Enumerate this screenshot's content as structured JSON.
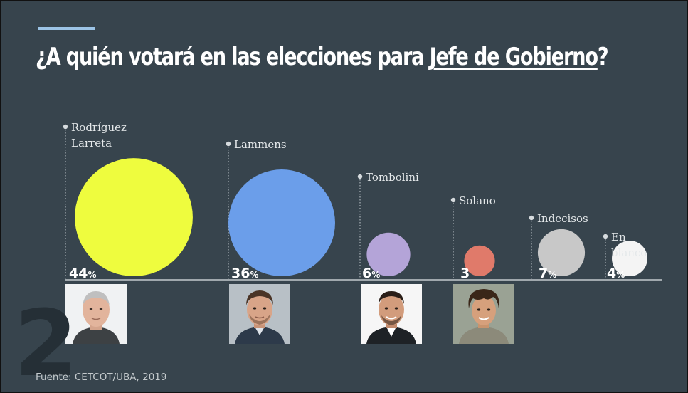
{
  "slide": {
    "title_prefix": "¿A quién votará en las elecciones para ",
    "title_highlight": "Jefe de Gobierno",
    "title_suffix": "?",
    "page_number": "2",
    "source": "Fuente: CETCOT/UBA, 2019"
  },
  "colors": {
    "background": "#37444d",
    "accent": "#9cc4e6",
    "text": "#ffffff"
  },
  "chart_data": {
    "type": "bubble",
    "title": "¿A quién votará en las elecciones para Jefe de Gobierno?",
    "unit": "%",
    "categories": [
      {
        "name_lines": [
          "Rodríguez",
          "Larreta"
        ],
        "value": 44,
        "label": "44",
        "show_pct": true,
        "color": "#eefc3e",
        "photo": "photo-rodriguez-larreta"
      },
      {
        "name_lines": [
          "Lammens"
        ],
        "value": 36,
        "label": "36",
        "show_pct": true,
        "color": "#6b9eea",
        "photo": "photo-lammens"
      },
      {
        "name_lines": [
          "Tombolini"
        ],
        "value": 6,
        "label": "6",
        "show_pct": true,
        "color": "#b4a4d8",
        "photo": "photo-tombolini"
      },
      {
        "name_lines": [
          "Solano"
        ],
        "value": 3,
        "label": "3",
        "show_pct": false,
        "color": "#e07a6a",
        "photo": "photo-solano"
      },
      {
        "name_lines": [
          "Indecisos"
        ],
        "value": 7,
        "label": "7",
        "show_pct": true,
        "color": "#c8c8c8",
        "photo": null
      },
      {
        "name_lines": [
          "En",
          "blanco"
        ],
        "value": 4,
        "label": "4",
        "show_pct": true,
        "color": "#f4f4f4",
        "photo": null
      }
    ]
  }
}
